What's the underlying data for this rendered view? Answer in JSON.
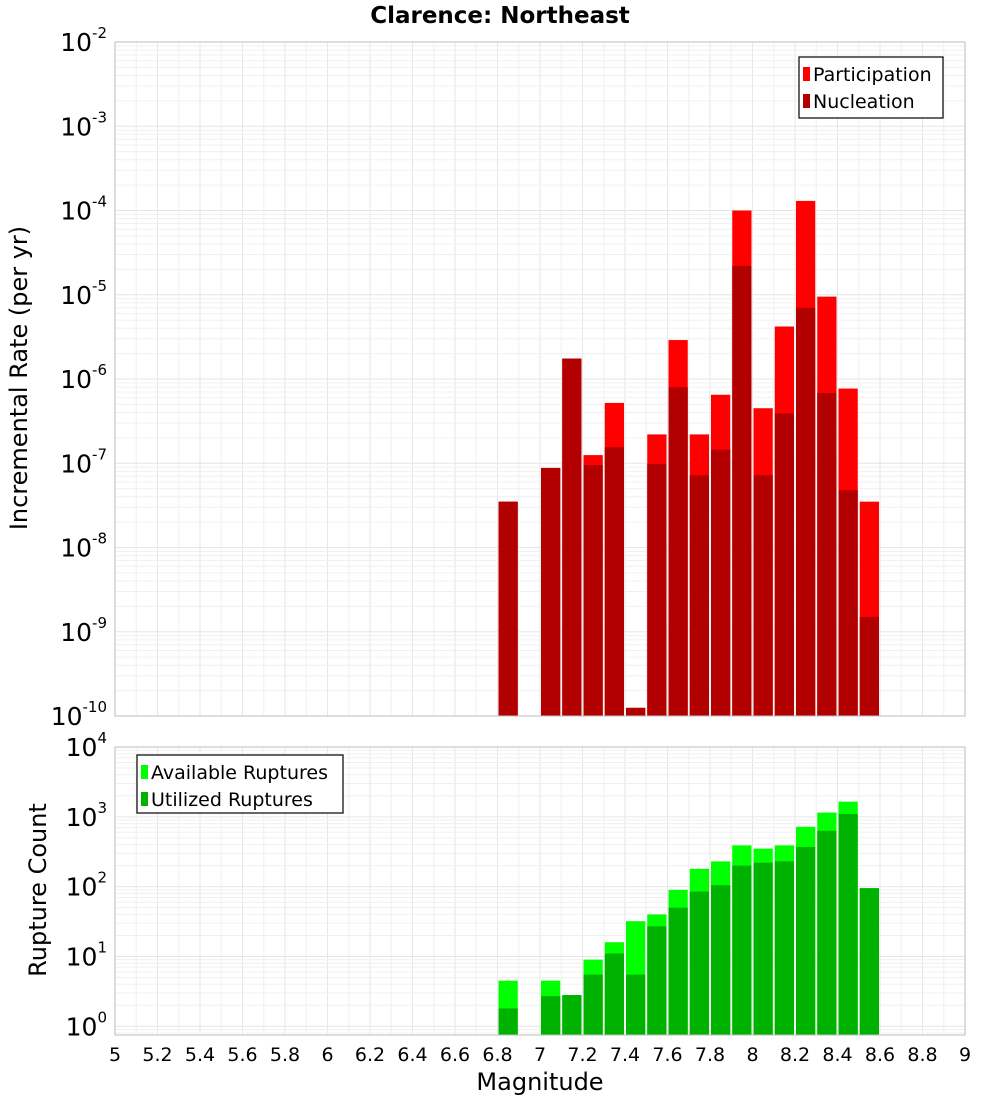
{
  "chart_data": [
    {
      "type": "bar",
      "title": "Clarence: Northeast",
      "ylabel": "Incremental Rate (per yr)",
      "xlabel": "",
      "yscale": "log",
      "ylim": [
        1e-10,
        0.01
      ],
      "xlim": [
        5,
        9
      ],
      "y_ticks": [
        {
          "base": "10",
          "exp": "-10"
        },
        {
          "base": "10",
          "exp": "-9"
        },
        {
          "base": "10",
          "exp": "-8"
        },
        {
          "base": "10",
          "exp": "-7"
        },
        {
          "base": "10",
          "exp": "-6"
        },
        {
          "base": "10",
          "exp": "-5"
        },
        {
          "base": "10",
          "exp": "-4"
        },
        {
          "base": "10",
          "exp": "-3"
        },
        {
          "base": "10",
          "exp": "-2"
        }
      ],
      "legend_position": "top-right",
      "x": [
        6.85,
        6.95,
        7.05,
        7.15,
        7.25,
        7.35,
        7.45,
        7.55,
        7.65,
        7.75,
        7.85,
        7.95,
        8.05,
        8.15,
        8.25,
        8.35,
        8.45,
        8.55
      ],
      "series": [
        {
          "name": "Participation",
          "color": "#ff0000",
          "values": [
            3.5e-08,
            null,
            8.8e-08,
            1.75e-06,
            1.25e-07,
            5.2e-07,
            1.25e-10,
            2.2e-07,
            2.9e-06,
            2.2e-07,
            6.5e-07,
            0.0001,
            4.5e-07,
            4.2e-06,
            0.00013,
            9.5e-06,
            7.7e-07,
            3.5e-08
          ]
        },
        {
          "name": "Nucleation",
          "color": "#b20000",
          "values": [
            3.5e-08,
            null,
            8.8e-08,
            1.75e-06,
            9.5e-08,
            1.55e-07,
            1.25e-10,
            9.8e-08,
            8e-07,
            7.2e-08,
            1.45e-07,
            2.2e-05,
            7.2e-08,
            3.9e-07,
            7e-06,
            6.8e-07,
            4.8e-08,
            1.5e-09
          ]
        }
      ]
    },
    {
      "type": "bar",
      "title": "",
      "ylabel": "Rupture Count",
      "xlabel": "Magnitude",
      "yscale": "log",
      "ylim": [
        0.75,
        10000
      ],
      "xlim": [
        5,
        9
      ],
      "x_ticks": [
        "5",
        "5.2",
        "5.4",
        "5.6",
        "5.8",
        "6",
        "6.2",
        "6.4",
        "6.6",
        "6.8",
        "7",
        "7.2",
        "7.4",
        "7.6",
        "7.8",
        "8",
        "8.2",
        "8.4",
        "8.6",
        "8.8",
        "9"
      ],
      "y_ticks": [
        {
          "base": "10",
          "exp": "0"
        },
        {
          "base": "10",
          "exp": "1"
        },
        {
          "base": "10",
          "exp": "2"
        },
        {
          "base": "10",
          "exp": "3"
        },
        {
          "base": "10",
          "exp": "4"
        }
      ],
      "legend_position": "top-left",
      "x": [
        6.85,
        6.95,
        7.05,
        7.15,
        7.25,
        7.35,
        7.45,
        7.55,
        7.65,
        7.75,
        7.85,
        7.95,
        8.05,
        8.15,
        8.25,
        8.35,
        8.45,
        8.55
      ],
      "series": [
        {
          "name": "Available Ruptures",
          "color": "#00ff00",
          "values": [
            4.5,
            null,
            4.5,
            2.8,
            9,
            16,
            32,
            40,
            90,
            180,
            230,
            390,
            350,
            390,
            720,
            1150,
            1650,
            95
          ]
        },
        {
          "name": "Utilized Ruptures",
          "color": "#00b200",
          "values": [
            1.8,
            null,
            2.7,
            2.8,
            5.5,
            11,
            5.5,
            27,
            50,
            85,
            105,
            200,
            220,
            230,
            370,
            630,
            1100,
            95
          ]
        }
      ]
    }
  ]
}
